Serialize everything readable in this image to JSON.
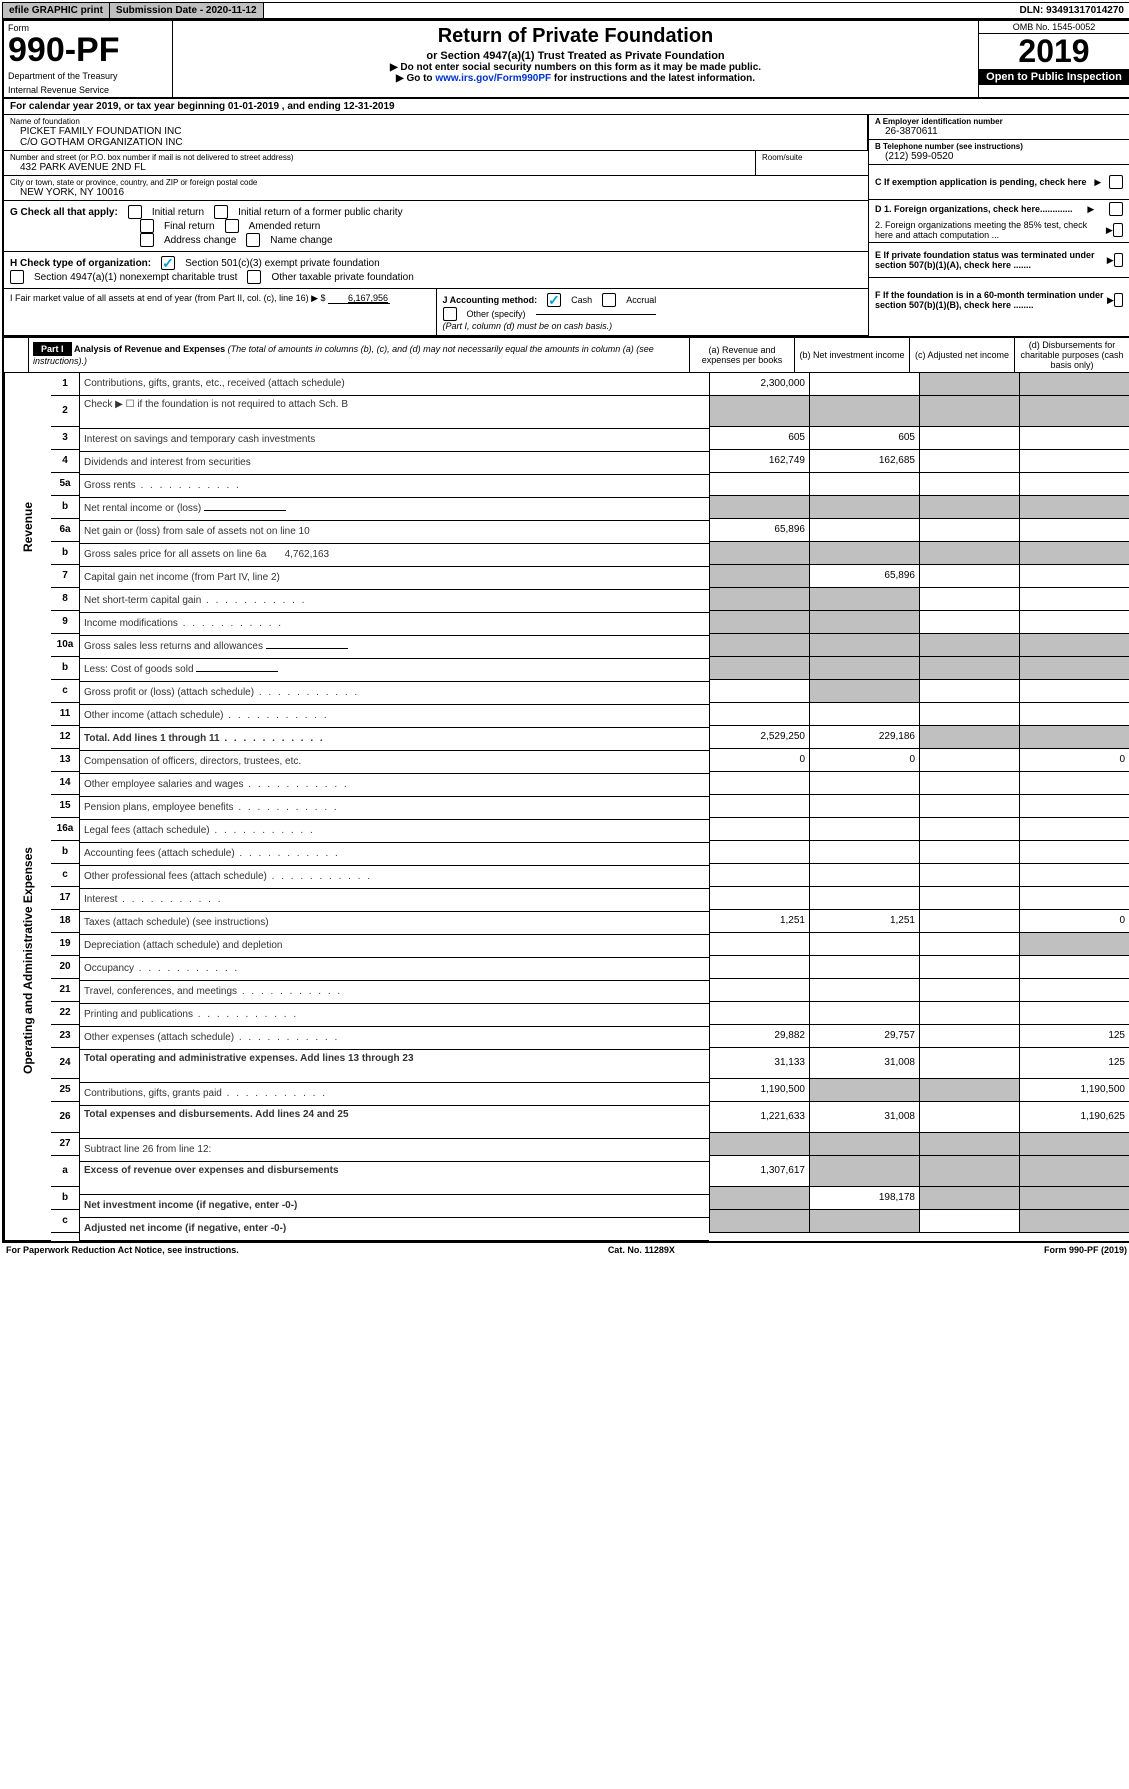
{
  "topbar": {
    "efile": "efile GRAPHIC print",
    "submission": "Submission Date - 2020-11-12",
    "dln": "DLN: 93491317014270"
  },
  "header": {
    "form_label": "Form",
    "form_number": "990-PF",
    "dept1": "Department of the Treasury",
    "dept2": "Internal Revenue Service",
    "title": "Return of Private Foundation",
    "subtitle": "or Section 4947(a)(1) Trust Treated as Private Foundation",
    "note1": "▶ Do not enter social security numbers on this form as it may be made public.",
    "note2_pre": "▶ Go to ",
    "note2_link": "www.irs.gov/Form990PF",
    "note2_post": " for instructions and the latest information.",
    "omb": "OMB No. 1545-0052",
    "year": "2019",
    "inspect": "Open to Public Inspection"
  },
  "calendar": "For calendar year 2019, or tax year beginning 01-01-2019          , and ending 12-31-2019",
  "foundation": {
    "name_label": "Name of foundation",
    "name": "PICKET FAMILY FOUNDATION INC\nC/O GOTHAM ORGANIZATION INC",
    "addr_label": "Number and street (or P.O. box number if mail is not delivered to street address)",
    "addr": "432 PARK AVENUE 2ND FL",
    "room_label": "Room/suite",
    "city_label": "City or town, state or province, country, and ZIP or foreign postal code",
    "city": "NEW YORK, NY  10016"
  },
  "right_info": {
    "a_label": "A Employer identification number",
    "a_value": "26-3870611",
    "b_label": "B Telephone number (see instructions)",
    "b_value": "(212) 599-0520",
    "c_label": "C If exemption application is pending, check here",
    "d1": "D 1. Foreign organizations, check here.............",
    "d2": "2. Foreign organizations meeting the 85% test, check here and attach computation ...",
    "e": "E  If private foundation status was terminated under section 507(b)(1)(A), check here .......",
    "f": "F  If the foundation is in a 60-month termination under section 507(b)(1)(B), check here ........"
  },
  "g": {
    "label": "G Check all that apply:",
    "opts": [
      "Initial return",
      "Initial return of a former public charity",
      "Final return",
      "Amended return",
      "Address change",
      "Name change"
    ]
  },
  "h": {
    "label": "H Check type of organization:",
    "opt1": "Section 501(c)(3) exempt private foundation",
    "opt2": "Section 4947(a)(1) nonexempt charitable trust",
    "opt3": "Other taxable private foundation"
  },
  "i": {
    "label": "I Fair market value of all assets at end of year (from Part II, col. (c), line 16) ▶ $",
    "value": "6,167,956"
  },
  "j": {
    "label": "J Accounting method:",
    "cash": "Cash",
    "accrual": "Accrual",
    "other": "Other (specify)",
    "note": "(Part I, column (d) must be on cash basis.)"
  },
  "part1": {
    "header": "Part I",
    "title": "Analysis of Revenue and Expenses",
    "subtitle": "(The total of amounts in columns (b), (c), and (d) may not necessarily equal the amounts in column (a) (see instructions).)",
    "col_a": "(a)  Revenue and expenses per books",
    "col_b": "(b)  Net investment income",
    "col_c": "(c)  Adjusted net income",
    "col_d": "(d)  Disbursements for charitable purposes (cash basis only)"
  },
  "side_labels": {
    "revenue": "Revenue",
    "expenses": "Operating and Administrative Expenses"
  },
  "lines": {
    "l1": {
      "n": "1",
      "d": "Contributions, gifts, grants, etc., received (attach schedule)",
      "a": "2,300,000"
    },
    "l2": {
      "n": "2",
      "d": "Check ▶ ☐ if the foundation is not required to attach Sch. B"
    },
    "l3": {
      "n": "3",
      "d": "Interest on savings and temporary cash investments",
      "a": "605",
      "b": "605"
    },
    "l4": {
      "n": "4",
      "d": "Dividends and interest from securities",
      "a": "162,749",
      "b": "162,685"
    },
    "l5a": {
      "n": "5a",
      "d": "Gross rents"
    },
    "l5b": {
      "n": "b",
      "d": "Net rental income or (loss)"
    },
    "l6a": {
      "n": "6a",
      "d": "Net gain or (loss) from sale of assets not on line 10",
      "a": "65,896"
    },
    "l6b": {
      "n": "b",
      "d": "Gross sales price for all assets on line 6a",
      "v": "4,762,163"
    },
    "l7": {
      "n": "7",
      "d": "Capital gain net income (from Part IV, line 2)",
      "b": "65,896"
    },
    "l8": {
      "n": "8",
      "d": "Net short-term capital gain"
    },
    "l9": {
      "n": "9",
      "d": "Income modifications"
    },
    "l10a": {
      "n": "10a",
      "d": "Gross sales less returns and allowances"
    },
    "l10b": {
      "n": "b",
      "d": "Less: Cost of goods sold"
    },
    "l10c": {
      "n": "c",
      "d": "Gross profit or (loss) (attach schedule)"
    },
    "l11": {
      "n": "11",
      "d": "Other income (attach schedule)"
    },
    "l12": {
      "n": "12",
      "d": "Total. Add lines 1 through 11",
      "a": "2,529,250",
      "b": "229,186"
    },
    "l13": {
      "n": "13",
      "d": "Compensation of officers, directors, trustees, etc.",
      "a": "0",
      "b": "0",
      "dd": "0"
    },
    "l14": {
      "n": "14",
      "d": "Other employee salaries and wages"
    },
    "l15": {
      "n": "15",
      "d": "Pension plans, employee benefits"
    },
    "l16a": {
      "n": "16a",
      "d": "Legal fees (attach schedule)"
    },
    "l16b": {
      "n": "b",
      "d": "Accounting fees (attach schedule)"
    },
    "l16c": {
      "n": "c",
      "d": "Other professional fees (attach schedule)"
    },
    "l17": {
      "n": "17",
      "d": "Interest"
    },
    "l18": {
      "n": "18",
      "d": "Taxes (attach schedule) (see instructions)",
      "a": "1,251",
      "b": "1,251",
      "dd": "0"
    },
    "l19": {
      "n": "19",
      "d": "Depreciation (attach schedule) and depletion"
    },
    "l20": {
      "n": "20",
      "d": "Occupancy"
    },
    "l21": {
      "n": "21",
      "d": "Travel, conferences, and meetings"
    },
    "l22": {
      "n": "22",
      "d": "Printing and publications"
    },
    "l23": {
      "n": "23",
      "d": "Other expenses (attach schedule)",
      "a": "29,882",
      "b": "29,757",
      "dd": "125"
    },
    "l24": {
      "n": "24",
      "d": "Total operating and administrative expenses. Add lines 13 through 23",
      "a": "31,133",
      "b": "31,008",
      "dd": "125"
    },
    "l25": {
      "n": "25",
      "d": "Contributions, gifts, grants paid",
      "a": "1,190,500",
      "dd": "1,190,500"
    },
    "l26": {
      "n": "26",
      "d": "Total expenses and disbursements. Add lines 24 and 25",
      "a": "1,221,633",
      "b": "31,008",
      "dd": "1,190,625"
    },
    "l27": {
      "n": "27",
      "d": "Subtract line 26 from line 12:"
    },
    "l27a": {
      "n": "a",
      "d": "Excess of revenue over expenses and disbursements",
      "a": "1,307,617"
    },
    "l27b": {
      "n": "b",
      "d": "Net investment income (if negative, enter -0-)",
      "b": "198,178"
    },
    "l27c": {
      "n": "c",
      "d": "Adjusted net income (if negative, enter -0-)"
    }
  },
  "footer": {
    "left": "For Paperwork Reduction Act Notice, see instructions.",
    "mid": "Cat. No. 11289X",
    "right": "Form 990-PF (2019)"
  }
}
